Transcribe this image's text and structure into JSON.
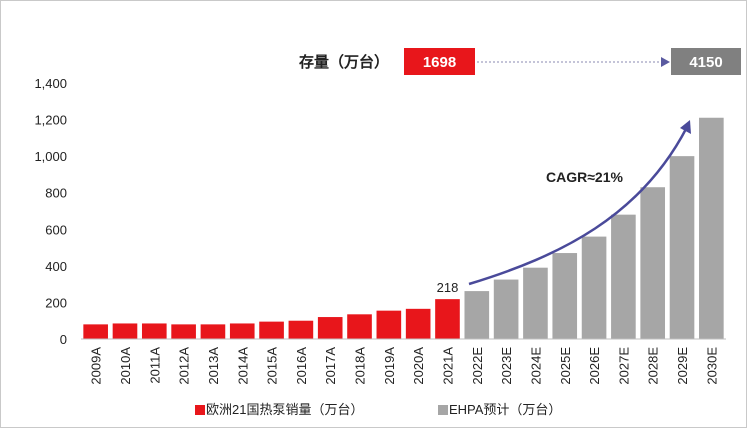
{
  "chart_data": {
    "type": "bar",
    "ylim": [
      0,
      1400
    ],
    "y_ticks": [
      "0",
      "200",
      "400",
      "600",
      "800",
      "1,000",
      "1,200",
      "1,400"
    ],
    "categories": [
      "2009A",
      "2010A",
      "2011A",
      "2012A",
      "2013A",
      "2014A",
      "2015A",
      "2016A",
      "2017A",
      "2018A",
      "2019A",
      "2020A",
      "2021A",
      "2022E",
      "2023E",
      "2024E",
      "2025E",
      "2026E",
      "2027E",
      "2028E",
      "2029E",
      "2030E"
    ],
    "series": [
      {
        "name": "欧洲21国热泵销量（万台）",
        "color": "#e8161b",
        "values": [
          80,
          85,
          85,
          80,
          80,
          85,
          95,
          100,
          120,
          135,
          155,
          165,
          218,
          null,
          null,
          null,
          null,
          null,
          null,
          null,
          null,
          null
        ]
      },
      {
        "name": "EHPA预计（万台）",
        "color": "#a6a6a6",
        "values": [
          null,
          null,
          null,
          null,
          null,
          null,
          null,
          null,
          null,
          null,
          null,
          null,
          null,
          262,
          325,
          390,
          470,
          560,
          680,
          830,
          1000,
          1210
        ]
      }
    ],
    "data_labels": [
      {
        "category": "2021A",
        "text": "218"
      }
    ],
    "grid": false,
    "legend": "bottom"
  },
  "stock": {
    "label": "存量（万台）",
    "value_2021": "1698",
    "value_2030": "4150",
    "color_2021": "#e8161b",
    "color_2030": "#808080"
  },
  "cagr": {
    "label": "CAGR≈21%",
    "arrow_color": "#4a4a9a"
  }
}
